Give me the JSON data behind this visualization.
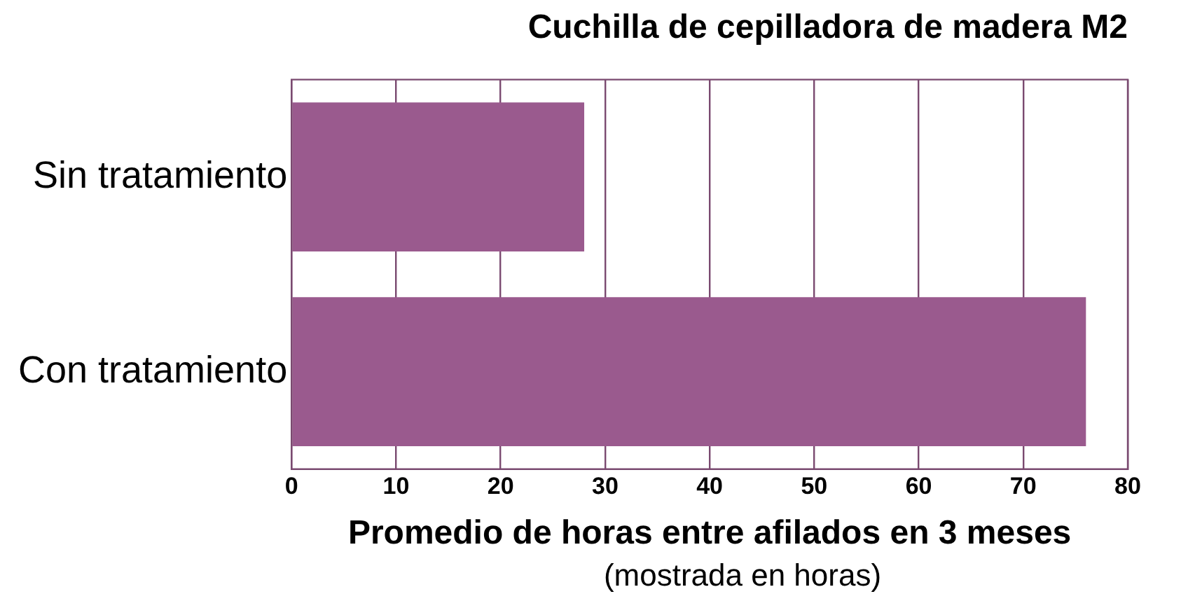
{
  "chart_data": {
    "type": "bar",
    "orientation": "horizontal",
    "title": "Cuchilla de cepilladora de madera M2",
    "categories": [
      "Sin tratamiento",
      "Con tratamiento"
    ],
    "values": [
      28,
      76
    ],
    "color": "#9a5a8e",
    "xlim": [
      0,
      80
    ],
    "xticks": [
      0,
      10,
      20,
      30,
      40,
      50,
      60,
      70,
      80
    ],
    "xlabel": "Promedio de horas entre afilados en 3 meses",
    "annotations": [
      "(mostrada en horas)"
    ],
    "grid": "x",
    "legend": false
  }
}
